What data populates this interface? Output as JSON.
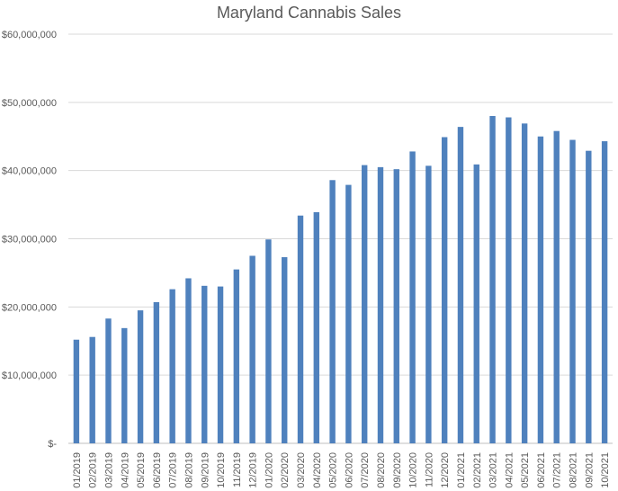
{
  "chart_data": {
    "type": "bar",
    "title": "Maryland Cannabis Sales",
    "xlabel": "",
    "ylabel": "",
    "ylim": [
      0,
      60000000
    ],
    "yticks": [
      0,
      10000000,
      20000000,
      30000000,
      40000000,
      50000000,
      60000000
    ],
    "ytick_labels": [
      "$-",
      "$10,000,000",
      "$20,000,000",
      "$30,000,000",
      "$40,000,000",
      "$50,000,000",
      "$60,000,000"
    ],
    "grid": true,
    "legend": "none",
    "bar_color": "#4F81BD",
    "categories": [
      "01/2019",
      "02/2019",
      "03/2019",
      "04/2019",
      "05/2019",
      "06/2019",
      "07/2019",
      "08/2019",
      "09/2019",
      "10/2019",
      "11/2019",
      "12/2019",
      "01/2020",
      "02/2020",
      "03/2020",
      "04/2020",
      "05/2020",
      "06/2020",
      "07/2020",
      "08/2020",
      "09/2020",
      "10/2020",
      "11/2020",
      "12/2020",
      "01/2021",
      "02/2021",
      "03/2021",
      "04/2021",
      "05/2021",
      "06/2021",
      "07/2021",
      "08/2021",
      "09/2021",
      "10/2021"
    ],
    "values": [
      15200000,
      15600000,
      18300000,
      16900000,
      19500000,
      20700000,
      22600000,
      24200000,
      23100000,
      23000000,
      25500000,
      27500000,
      29900000,
      27300000,
      33400000,
      33900000,
      38600000,
      37900000,
      40800000,
      40500000,
      40200000,
      42800000,
      40700000,
      44900000,
      46400000,
      40900000,
      48000000,
      47800000,
      46900000,
      45000000,
      45800000,
      44500000,
      42900000,
      44300000
    ]
  }
}
